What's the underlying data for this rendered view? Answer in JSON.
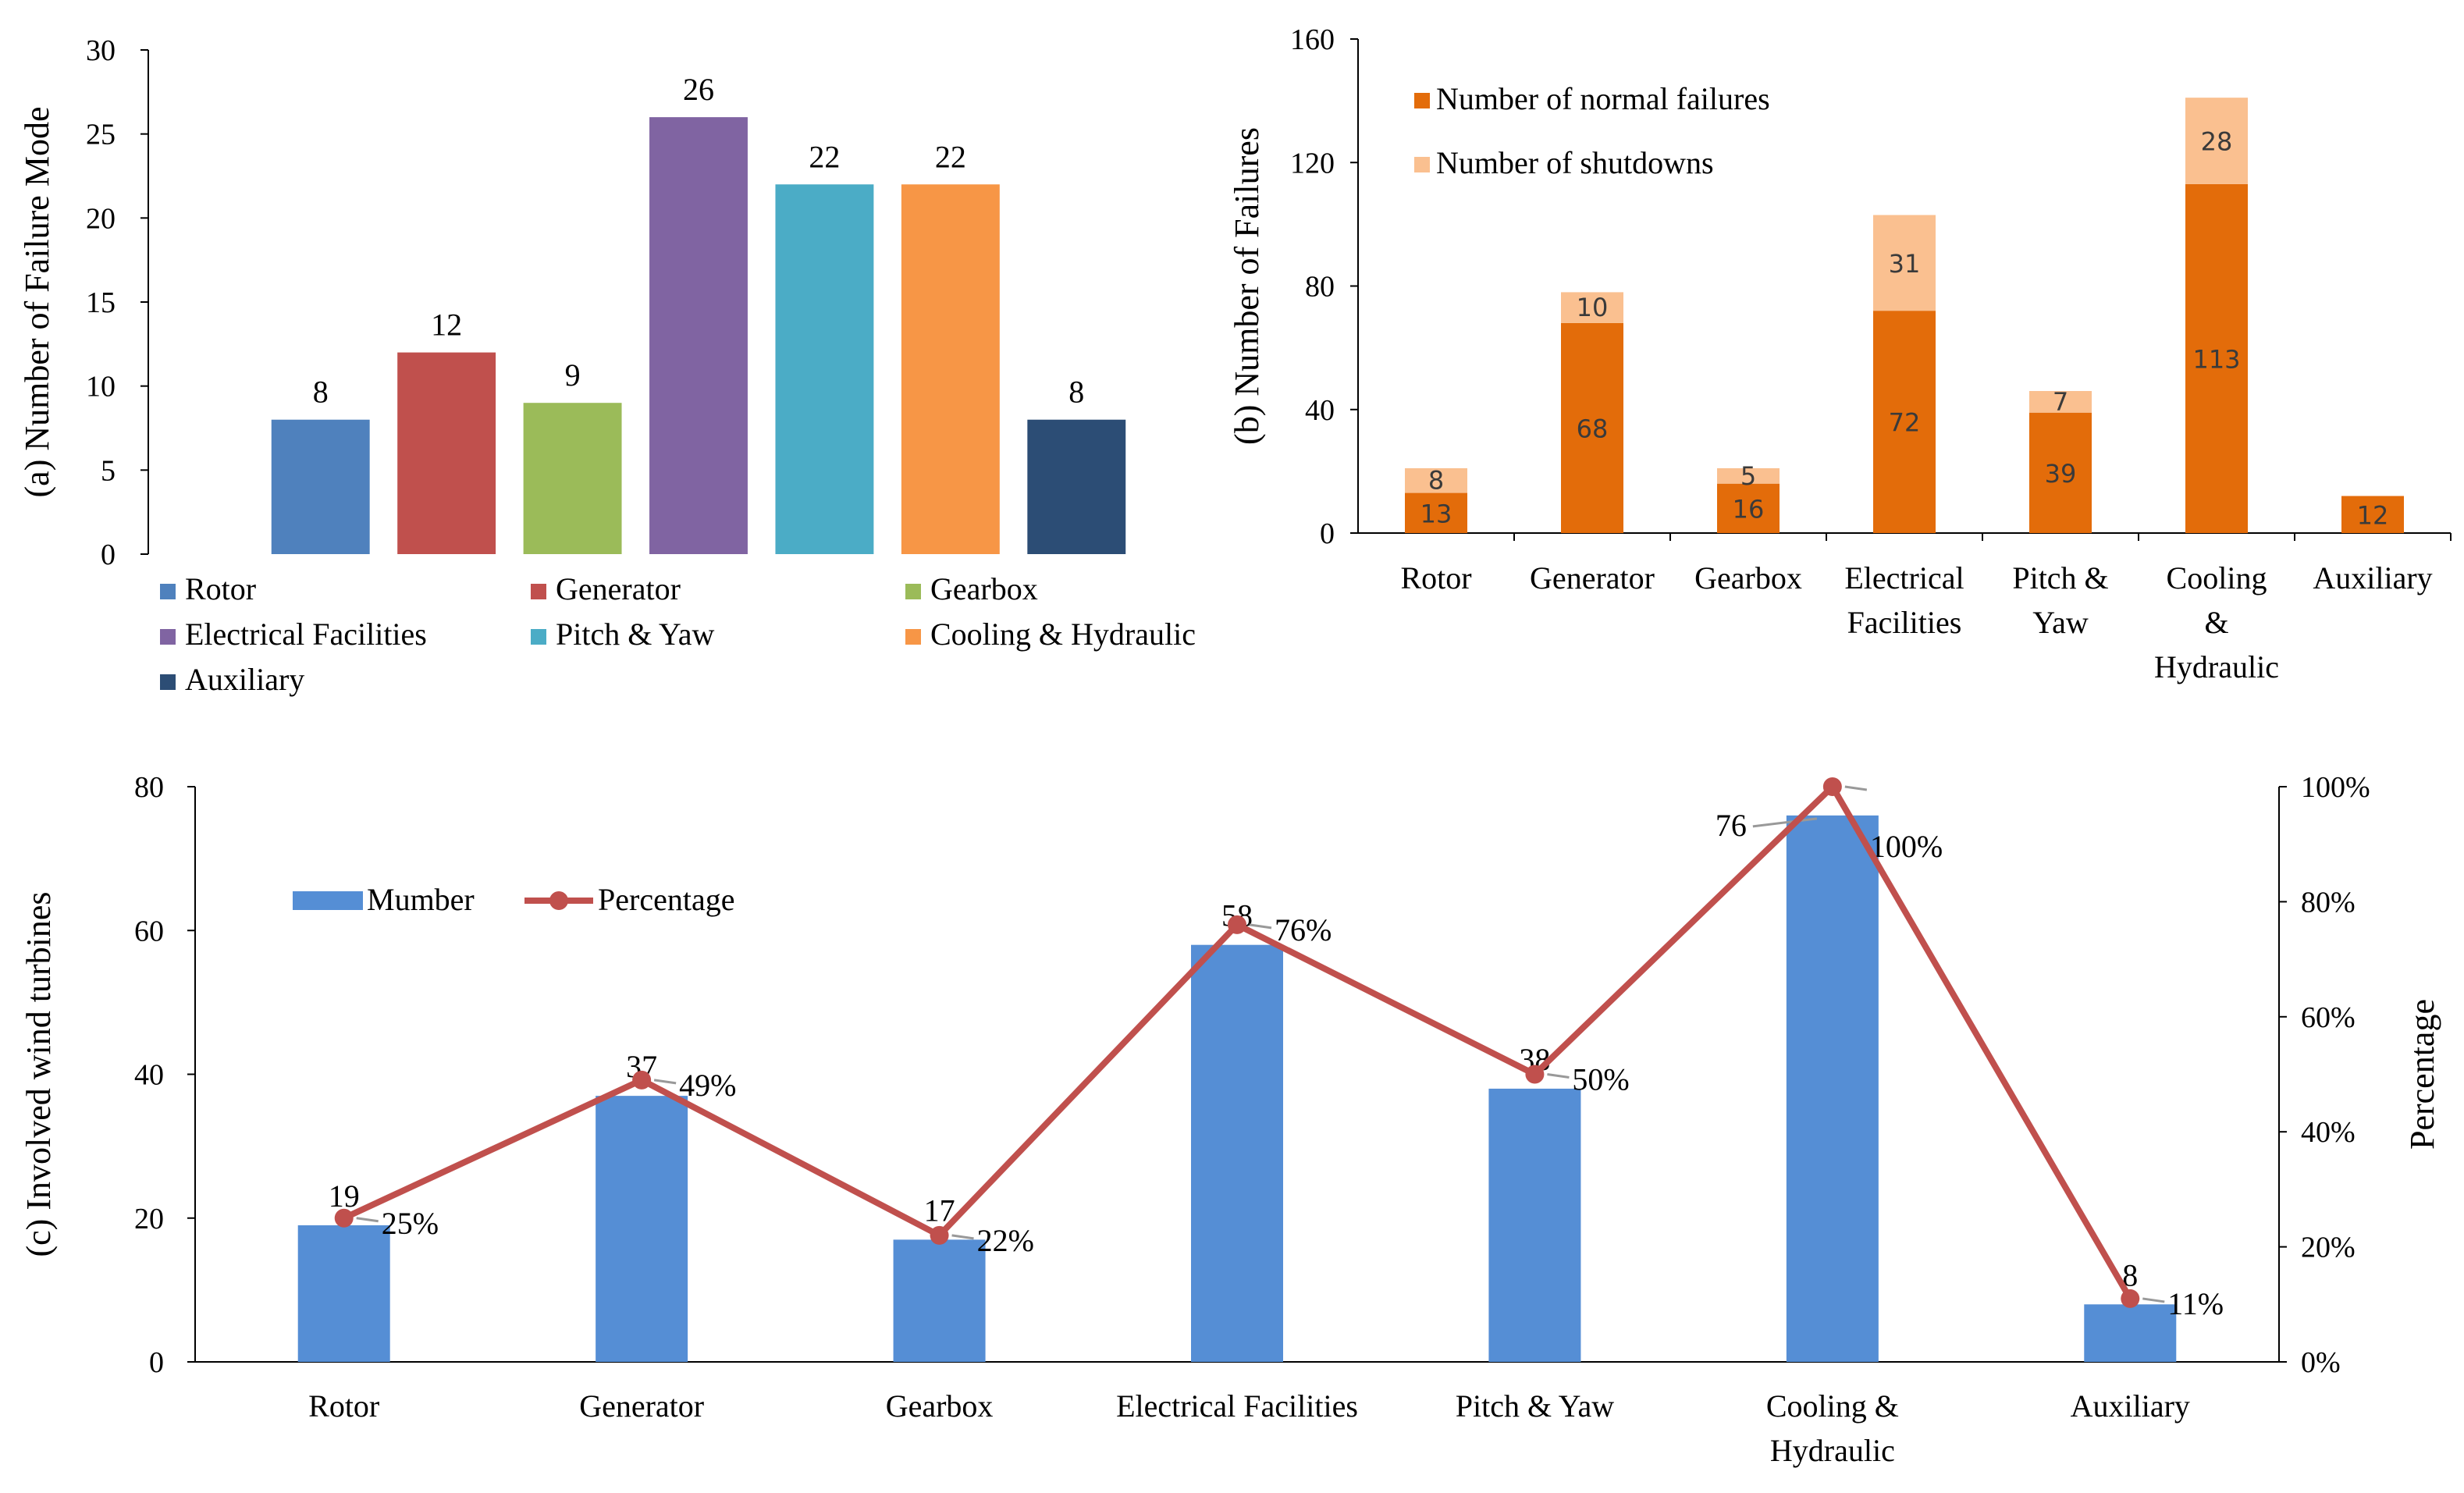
{
  "chart_data": [
    {
      "id": "a",
      "type": "bar",
      "ylabel": "(a) Number of Failure Mode",
      "ylim": [
        0,
        30
      ],
      "yticks": [
        0,
        5,
        10,
        15,
        20,
        25,
        30
      ],
      "categories": [
        "Rotor",
        "Generator",
        "Gearbox",
        "Electrical Facilities",
        "Pitch & Yaw",
        "Cooling & Hydraulic",
        "Auxiliary"
      ],
      "values": [
        8,
        12,
        9,
        26,
        22,
        22,
        8
      ],
      "colors": [
        "#4f81bd",
        "#c0504d",
        "#9bbb59",
        "#8064a2",
        "#4bacc6",
        "#f79646",
        "#2c4d75"
      ],
      "legend": [
        "Rotor",
        "Generator",
        "Gearbox",
        "Electrical Facilities",
        "Pitch & Yaw",
        "Cooling & Hydraulic",
        "Auxiliary"
      ],
      "legend_position": "bottom",
      "grid": false
    },
    {
      "id": "b",
      "type": "bar",
      "stacked": true,
      "ylabel": "(b) Number of Failures",
      "ylim": [
        0,
        160
      ],
      "yticks": [
        0,
        40,
        80,
        120,
        160
      ],
      "categories": [
        "Rotor",
        "Generator",
        "Gearbox",
        "Electrical Facilities",
        "Pitch & Yaw",
        "Cooling & Hydraulic",
        "Auxiliary"
      ],
      "category_lines": [
        [
          "Rotor"
        ],
        [
          "Generator"
        ],
        [
          "Gearbox"
        ],
        [
          "Electrical",
          "Facilities"
        ],
        [
          "Pitch &",
          "Yaw"
        ],
        [
          "Cooling",
          "&",
          "Hydraulic"
        ],
        [
          "Auxiliary"
        ]
      ],
      "series": [
        {
          "name": "Number of normal failures",
          "values": [
            13,
            68,
            16,
            72,
            39,
            113,
            12
          ],
          "color": "#e36c0a"
        },
        {
          "name": "Number of shutdowns",
          "values": [
            8,
            10,
            5,
            31,
            7,
            28,
            0
          ],
          "color": "#fac090"
        }
      ],
      "legend_position": "top-left",
      "grid": false
    },
    {
      "id": "c",
      "type": "bar",
      "combo": "bar+line",
      "ylabel": "(c) Involved wind turbines",
      "ylabel_right": "Percentage",
      "ylim": [
        0,
        80
      ],
      "yticks": [
        0,
        20,
        40,
        60,
        80
      ],
      "ylim_right": [
        0,
        100
      ],
      "yticks_right": [
        "0%",
        "20%",
        "40%",
        "60%",
        "80%",
        "100%"
      ],
      "categories": [
        "Rotor",
        "Generator",
        "Gearbox",
        "Electrical Facilities",
        "Pitch & Yaw",
        "Cooling & Hydraulic",
        "Auxiliary"
      ],
      "category_lines": [
        [
          "Rotor"
        ],
        [
          "Generator"
        ],
        [
          "Gearbox"
        ],
        [
          "Electrical Facilities"
        ],
        [
          "Pitch & Yaw"
        ],
        [
          "Cooling &",
          "Hydraulic"
        ],
        [
          "Auxiliary"
        ]
      ],
      "series": [
        {
          "name": "Mumber",
          "axis": "left",
          "values": [
            19,
            37,
            17,
            58,
            38,
            76,
            8
          ],
          "color": "#558ed5"
        },
        {
          "name": "Percentage",
          "axis": "right",
          "values": [
            25,
            49,
            22,
            76,
            50,
            100,
            11
          ],
          "labels": [
            "25%",
            "49%",
            "22%",
            "76%",
            "50%",
            "100%",
            "11%"
          ],
          "color": "#c0504d"
        }
      ],
      "legend_position": "top-left",
      "grid": false
    }
  ]
}
